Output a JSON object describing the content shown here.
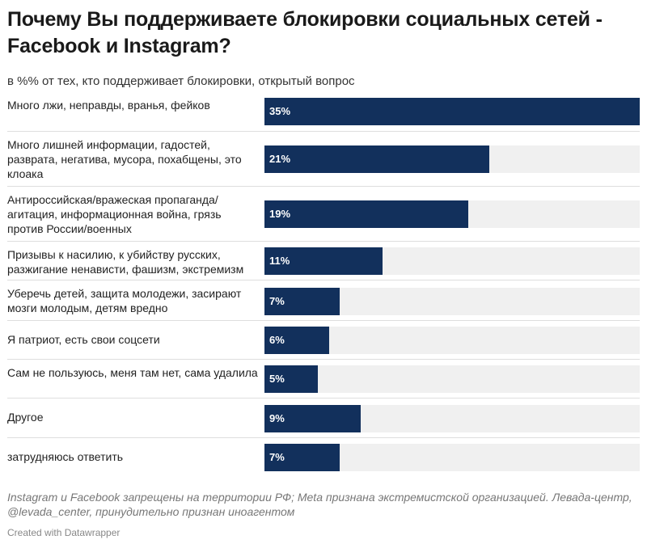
{
  "header": {
    "title": "Почему Вы поддерживаете блокировки социальных сетей - Facebook и Instagram?",
    "subtitle": "в %% от тех, кто поддерживает блокировки, открытый вопрос"
  },
  "chart_data": {
    "type": "bar",
    "orientation": "horizontal",
    "categories": [
      "Много лжи, неправды, вранья, фейков",
      "Много лишней информации, гадостей, разврата, негатива, мусора, похабщены, это клоака",
      "Антироссийская/вражеская пропаганда/ агитация, информационная война, грязь против России/военных",
      "Призывы к насилию, к убийству русских, разжигание ненависти, фашизм, экстремизм",
      "Уберечь детей, защита молодежи, засирают мозги молодым, детям вредно",
      "Я патриот, есть свои соцсети",
      "Сам не пользуюсь, меня там нет, сама удалила",
      "Другое",
      "затрудняюсь ответить"
    ],
    "values": [
      35,
      21,
      19,
      11,
      7,
      6,
      5,
      9,
      7
    ],
    "value_labels": [
      "35%",
      "21%",
      "19%",
      "11%",
      "7%",
      "6%",
      "5%",
      "9%",
      "7%"
    ],
    "xlim": [
      0,
      35
    ],
    "colors": {
      "bar": "#12305c",
      "track": "#f0f0f0",
      "label": "#ffffff"
    }
  },
  "footer": {
    "note": "Instagram и Facebook запрещены на территории РФ; Meta признана экстремистской организацией. Левада-центр, @levada_center, принудительно признан иноагентом",
    "credit": "Created with Datawrapper"
  }
}
